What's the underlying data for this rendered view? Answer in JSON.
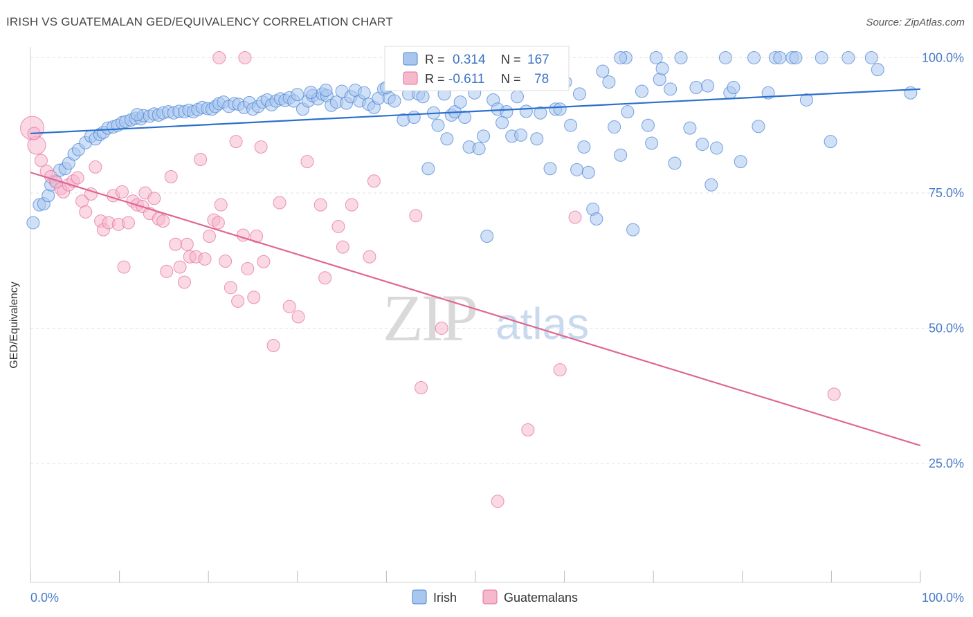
{
  "title": "IRISH VS GUATEMALAN GED/EQUIVALENCY CORRELATION CHART",
  "source": "Source: ZipAtlas.com",
  "watermark": {
    "zip": "ZIP",
    "atlas": "atlas"
  },
  "colors": {
    "irish": "#4a84d4",
    "irish_fill": "#a9c6ee",
    "guatemalan": "#e6709c",
    "guatemalan_fill": "#f5b8cd",
    "tick": "#4a7cc9",
    "grid": "#e2e2e2"
  },
  "chart_data": {
    "type": "scatter",
    "title": "IRISH VS GUATEMALAN GED/EQUIVALENCY CORRELATION CHART",
    "xlabel": "",
    "ylabel": "GED/Equivalency",
    "xlim": [
      0,
      100
    ],
    "ylim": [
      3,
      103
    ],
    "x_tick_labels": [
      {
        "value": 0,
        "label": "0.0%"
      },
      {
        "value": 100,
        "label": "100.0%"
      }
    ],
    "y_tick_labels": [
      {
        "value": 100,
        "label": "100.0%"
      },
      {
        "value": 75,
        "label": "75.0%"
      },
      {
        "value": 50,
        "label": "50.0%"
      },
      {
        "value": 25,
        "label": "25.0%"
      }
    ],
    "grid": "horizontal dashed",
    "legend_position": "top-center",
    "legend": [
      {
        "name": "Irish",
        "r_label": "R =",
        "r": "0.314",
        "n_label": "N =",
        "n": "167"
      },
      {
        "name": "Guatemalans",
        "r_label": "R =",
        "r": "-0.611",
        "n_label": "N =",
        "n": "78"
      }
    ],
    "series": [
      {
        "name": "Irish",
        "trend": {
          "x": [
            0,
            100
          ],
          "y": [
            86.0,
            94.2
          ]
        },
        "points": [
          [
            0.3,
            69.5
          ],
          [
            1.0,
            72.8
          ],
          [
            1.5,
            73.0
          ],
          [
            2.0,
            74.5
          ],
          [
            2.3,
            76.5
          ],
          [
            2.8,
            77.2
          ],
          [
            3.3,
            79.2
          ],
          [
            3.9,
            79.5
          ],
          [
            4.3,
            80.5
          ],
          [
            4.9,
            82.2
          ],
          [
            5.4,
            83.0
          ],
          [
            6.2,
            84.3
          ],
          [
            6.8,
            85.5
          ],
          [
            7.3,
            85.0
          ],
          [
            7.8,
            85.8
          ],
          [
            8.2,
            86.2
          ],
          [
            8.7,
            87.0
          ],
          [
            9.3,
            87.2
          ],
          [
            9.8,
            87.5
          ],
          [
            10.3,
            88.0
          ],
          [
            10.7,
            88.2
          ],
          [
            11.3,
            88.5
          ],
          [
            11.8,
            88.8
          ],
          [
            12.4,
            88.7
          ],
          [
            12.7,
            89.3
          ],
          [
            13.4,
            89.2
          ],
          [
            13.9,
            89.6
          ],
          [
            14.4,
            89.4
          ],
          [
            14.9,
            89.8
          ],
          [
            15.5,
            90.0
          ],
          [
            16.1,
            89.8
          ],
          [
            16.7,
            90.1
          ],
          [
            17.3,
            90.0
          ],
          [
            17.8,
            90.3
          ],
          [
            18.3,
            90.0
          ],
          [
            18.8,
            90.4
          ],
          [
            19.3,
            90.8
          ],
          [
            19.9,
            90.6
          ],
          [
            20.4,
            90.5
          ],
          [
            20.8,
            91.0
          ],
          [
            21.2,
            91.5
          ],
          [
            21.7,
            91.8
          ],
          [
            22.3,
            91.0
          ],
          [
            22.9,
            91.5
          ],
          [
            23.4,
            91.4
          ],
          [
            24.0,
            90.8
          ],
          [
            24.6,
            91.7
          ],
          [
            25.0,
            90.5
          ],
          [
            25.6,
            91.0
          ],
          [
            26.1,
            91.8
          ],
          [
            26.6,
            92.2
          ],
          [
            27.1,
            91.3
          ],
          [
            27.6,
            92.0
          ],
          [
            28.1,
            92.4
          ],
          [
            28.6,
            92.1
          ],
          [
            29.1,
            92.6
          ],
          [
            29.6,
            92.0
          ],
          [
            30.0,
            93.2
          ],
          [
            30.6,
            90.5
          ],
          [
            31.2,
            92.0
          ],
          [
            31.7,
            93.0
          ],
          [
            32.3,
            92.4
          ],
          [
            32.8,
            93.3
          ],
          [
            33.3,
            93.0
          ],
          [
            33.8,
            91.2
          ],
          [
            34.4,
            91.8
          ],
          [
            35.0,
            93.8
          ],
          [
            35.5,
            91.6
          ],
          [
            36.0,
            92.8
          ],
          [
            36.5,
            94.0
          ],
          [
            37.0,
            92.0
          ],
          [
            37.5,
            93.5
          ],
          [
            38.0,
            91.4
          ],
          [
            38.6,
            90.8
          ],
          [
            39.1,
            92.5
          ],
          [
            39.7,
            94.2
          ],
          [
            40.3,
            92.6
          ],
          [
            40.9,
            92.0
          ],
          [
            41.4,
            96.0
          ],
          [
            41.9,
            88.5
          ],
          [
            42.5,
            93.3
          ],
          [
            43.1,
            89.0
          ],
          [
            43.6,
            93.3
          ],
          [
            44.1,
            92.8
          ],
          [
            44.7,
            79.5
          ],
          [
            45.3,
            89.8
          ],
          [
            45.8,
            87.5
          ],
          [
            46.5,
            93.3
          ],
          [
            46.8,
            85.0
          ],
          [
            47.3,
            89.4
          ],
          [
            47.7,
            90.0
          ],
          [
            48.3,
            91.8
          ],
          [
            48.8,
            89.0
          ],
          [
            49.3,
            83.5
          ],
          [
            49.9,
            93.5
          ],
          [
            50.4,
            83.2
          ],
          [
            50.9,
            85.5
          ],
          [
            51.3,
            67.0
          ],
          [
            52.0,
            92.2
          ],
          [
            52.5,
            90.5
          ],
          [
            53.0,
            88.0
          ],
          [
            53.5,
            90.0
          ],
          [
            54.1,
            85.5
          ],
          [
            54.7,
            92.8
          ],
          [
            55.1,
            85.7
          ],
          [
            55.7,
            90.1
          ],
          [
            56.2,
            96.0
          ],
          [
            56.9,
            85.0
          ],
          [
            57.3,
            89.8
          ],
          [
            57.8,
            95.5
          ],
          [
            58.4,
            79.5
          ],
          [
            59.0,
            90.5
          ],
          [
            59.5,
            90.5
          ],
          [
            60.1,
            95.5
          ],
          [
            60.7,
            87.5
          ],
          [
            61.4,
            79.3
          ],
          [
            62.2,
            83.5
          ],
          [
            62.7,
            78.8
          ],
          [
            63.2,
            72.0
          ],
          [
            63.6,
            70.2
          ],
          [
            64.3,
            97.5
          ],
          [
            65.0,
            95.5
          ],
          [
            65.6,
            87.2
          ],
          [
            66.3,
            82.0
          ],
          [
            66.9,
            100.0
          ],
          [
            67.1,
            90.0
          ],
          [
            67.7,
            68.2
          ],
          [
            68.7,
            93.8
          ],
          [
            69.4,
            87.5
          ],
          [
            69.8,
            84.2
          ],
          [
            70.3,
            100.0
          ],
          [
            70.7,
            96.0
          ],
          [
            71.0,
            98.0
          ],
          [
            71.9,
            94.2
          ],
          [
            72.4,
            80.5
          ],
          [
            73.1,
            100.0
          ],
          [
            74.1,
            87.0
          ],
          [
            74.8,
            94.5
          ],
          [
            75.5,
            84.0
          ],
          [
            76.1,
            94.8
          ],
          [
            76.5,
            76.5
          ],
          [
            77.1,
            83.3
          ],
          [
            78.1,
            100.0
          ],
          [
            78.6,
            93.5
          ],
          [
            79.0,
            94.5
          ],
          [
            79.8,
            80.8
          ],
          [
            81.3,
            100.0
          ],
          [
            81.8,
            87.3
          ],
          [
            82.9,
            93.5
          ],
          [
            83.7,
            100.0
          ],
          [
            84.2,
            100.0
          ],
          [
            85.6,
            100.0
          ],
          [
            86.0,
            100.0
          ],
          [
            87.2,
            92.2
          ],
          [
            88.9,
            100.0
          ],
          [
            89.9,
            84.5
          ],
          [
            91.9,
            100.0
          ],
          [
            94.5,
            100.0
          ],
          [
            95.2,
            97.8
          ],
          [
            98.9,
            93.5
          ],
          [
            66.3,
            100.0
          ],
          [
            54.6,
            95.3
          ],
          [
            61.7,
            93.3
          ],
          [
            40.0,
            94.5
          ],
          [
            31.5,
            93.6
          ],
          [
            33.2,
            94.0
          ],
          [
            12.0,
            89.5
          ]
        ]
      },
      {
        "name": "Guatemalans",
        "trend": {
          "x": [
            0,
            100
          ],
          "y": [
            78.8,
            28.3
          ]
        },
        "points": [
          [
            0.2,
            87.0
          ],
          [
            0.7,
            83.8
          ],
          [
            1.2,
            81.0
          ],
          [
            1.8,
            79.0
          ],
          [
            2.3,
            78.0
          ],
          [
            2.9,
            77.0
          ],
          [
            3.4,
            75.8
          ],
          [
            3.7,
            75.2
          ],
          [
            4.3,
            76.5
          ],
          [
            4.8,
            77.2
          ],
          [
            5.3,
            77.8
          ],
          [
            5.8,
            73.5
          ],
          [
            6.2,
            71.5
          ],
          [
            6.8,
            74.8
          ],
          [
            7.3,
            79.8
          ],
          [
            7.9,
            69.8
          ],
          [
            8.2,
            68.2
          ],
          [
            8.8,
            69.5
          ],
          [
            9.3,
            74.5
          ],
          [
            9.9,
            69.2
          ],
          [
            10.3,
            75.2
          ],
          [
            10.5,
            61.3
          ],
          [
            11.0,
            69.5
          ],
          [
            11.5,
            73.5
          ],
          [
            12.0,
            72.8
          ],
          [
            12.6,
            72.5
          ],
          [
            12.9,
            75.0
          ],
          [
            13.4,
            71.2
          ],
          [
            13.9,
            74.0
          ],
          [
            14.4,
            70.2
          ],
          [
            14.9,
            69.8
          ],
          [
            15.3,
            60.5
          ],
          [
            15.8,
            78.0
          ],
          [
            16.3,
            65.5
          ],
          [
            16.8,
            61.3
          ],
          [
            17.3,
            58.5
          ],
          [
            17.6,
            65.5
          ],
          [
            17.9,
            63.2
          ],
          [
            18.6,
            63.2
          ],
          [
            19.1,
            81.2
          ],
          [
            19.6,
            62.8
          ],
          [
            20.1,
            67.0
          ],
          [
            20.6,
            70.0
          ],
          [
            21.1,
            69.5
          ],
          [
            21.4,
            72.8
          ],
          [
            21.9,
            62.4
          ],
          [
            22.5,
            57.5
          ],
          [
            23.1,
            84.5
          ],
          [
            23.3,
            55.0
          ],
          [
            23.9,
            67.2
          ],
          [
            24.4,
            61.0
          ],
          [
            25.1,
            55.7
          ],
          [
            25.4,
            67.0
          ],
          [
            25.9,
            83.5
          ],
          [
            26.2,
            62.3
          ],
          [
            27.3,
            46.8
          ],
          [
            28.0,
            73.2
          ],
          [
            29.1,
            54.0
          ],
          [
            30.1,
            52.1
          ],
          [
            31.1,
            80.8
          ],
          [
            32.6,
            72.8
          ],
          [
            33.1,
            59.3
          ],
          [
            34.6,
            68.8
          ],
          [
            35.1,
            65.0
          ],
          [
            36.1,
            72.8
          ],
          [
            38.1,
            63.2
          ],
          [
            38.6,
            77.2
          ],
          [
            43.9,
            39.0
          ],
          [
            43.3,
            70.8
          ],
          [
            46.2,
            50.0
          ],
          [
            52.5,
            18.0
          ],
          [
            55.9,
            31.2
          ],
          [
            59.5,
            42.3
          ],
          [
            61.2,
            70.5
          ],
          [
            90.3,
            37.8
          ],
          [
            21.2,
            100.0
          ],
          [
            24.1,
            100.0
          ],
          [
            0.4,
            86.0
          ]
        ]
      }
    ]
  }
}
